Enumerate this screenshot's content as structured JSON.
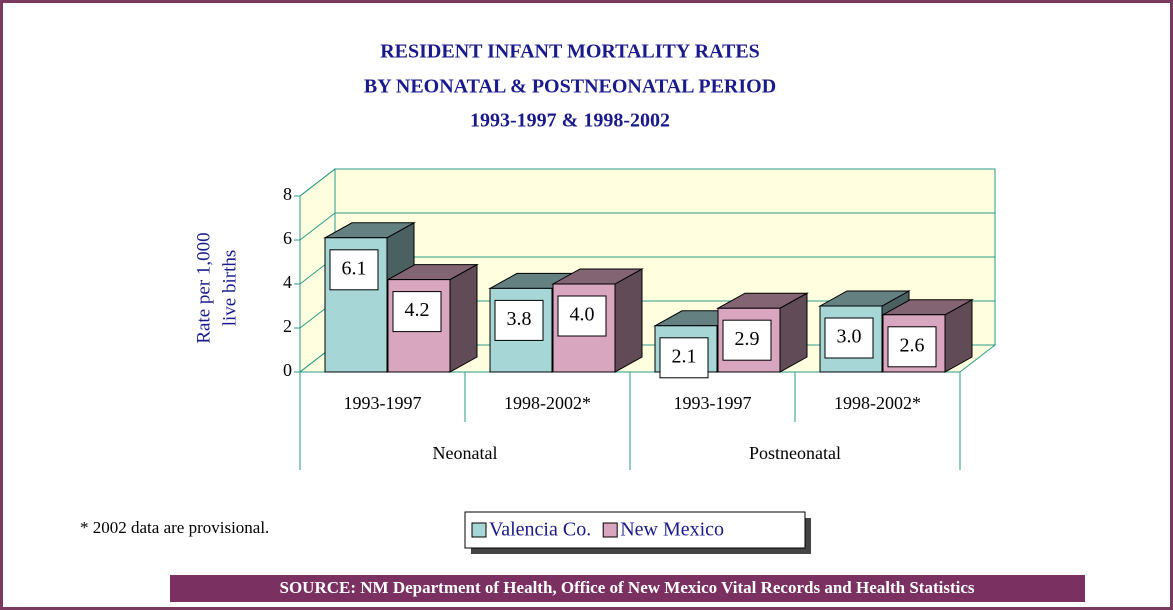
{
  "chart_data": {
    "type": "bar3d",
    "title": [
      "RESIDENT INFANT MORTALITY RATES",
      "BY NEONATAL & POSTNEONATAL PERIOD",
      "1993-1997 & 1998-2002"
    ],
    "ylabel": [
      "Rate per 1,000",
      "live births"
    ],
    "categories": [
      "1993-1997",
      "1998-2002*",
      "1993-1997",
      "1998-2002*"
    ],
    "groups": [
      "Neonatal",
      "Postneonatal"
    ],
    "series": [
      {
        "name": "Valencia Co.",
        "color": "#a6d6d6",
        "values": [
          6.1,
          3.8,
          2.1,
          3.0
        ],
        "value_labels": [
          "6.1",
          "3.8",
          "2.1",
          "3.0"
        ]
      },
      {
        "name": "New Mexico",
        "color": "#d8a6bf",
        "values": [
          4.2,
          4.0,
          2.9,
          2.6
        ],
        "value_labels": [
          "4.2",
          "4.0",
          "2.9",
          "2.6"
        ]
      }
    ],
    "ylim": [
      0,
      8
    ],
    "yticks": [
      0,
      2,
      4,
      6,
      8
    ],
    "grid": true,
    "note": "* 2002 data are provisional.",
    "source": "SOURCE: NM Department of Health, Office of New Mexico Vital Records and Health Statistics"
  }
}
